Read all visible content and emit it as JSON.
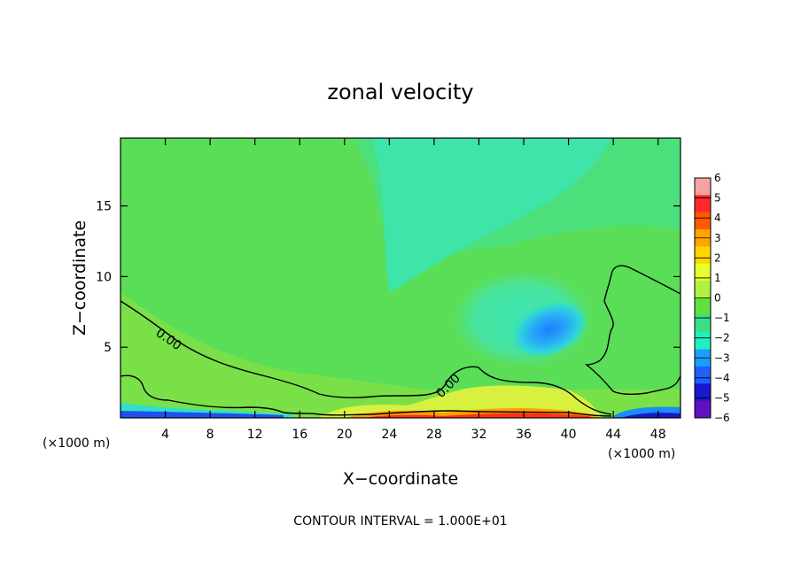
{
  "chart_data": {
    "type": "heatmap",
    "title": "zonal velocity",
    "xlabel": "X−coordinate",
    "ylabel": "Z−coordinate",
    "x_unit_label": "(×1000 m)",
    "z_unit_label": "(×1000 m)",
    "xlim": [
      0,
      50
    ],
    "ylim": [
      0,
      19.8
    ],
    "x_ticks": [
      4,
      8,
      12,
      16,
      20,
      24,
      28,
      32,
      36,
      40,
      44,
      48
    ],
    "y_ticks": [
      5,
      10,
      15
    ],
    "colorbar": {
      "levels": [
        6,
        5,
        4,
        3,
        2,
        1,
        0,
        -1,
        -2,
        -3,
        -4,
        -5,
        -6
      ],
      "colors": [
        "#f7a2a2",
        "#ff2a2a",
        "#ff5a00",
        "#ffa500",
        "#ffd700",
        "#e8ff2a",
        "#b0f040",
        "#60e040",
        "#38e088",
        "#20f0c0",
        "#1c9cff",
        "#2060ff",
        "#1818d0",
        "#6010c0"
      ]
    },
    "contour_labels": [
      "0.00",
      "0.00"
    ],
    "contour_interval_text": "CONTOUR INTERVAL = 1.000E+01",
    "field_description_values": {
      "background": 0,
      "upper_center_max_negative": -1.6,
      "blob_center": [
        38,
        6.5
      ],
      "blob_min": -3.2,
      "surface_positive_max": 5.2,
      "surface_negative_min": -5.5
    }
  }
}
